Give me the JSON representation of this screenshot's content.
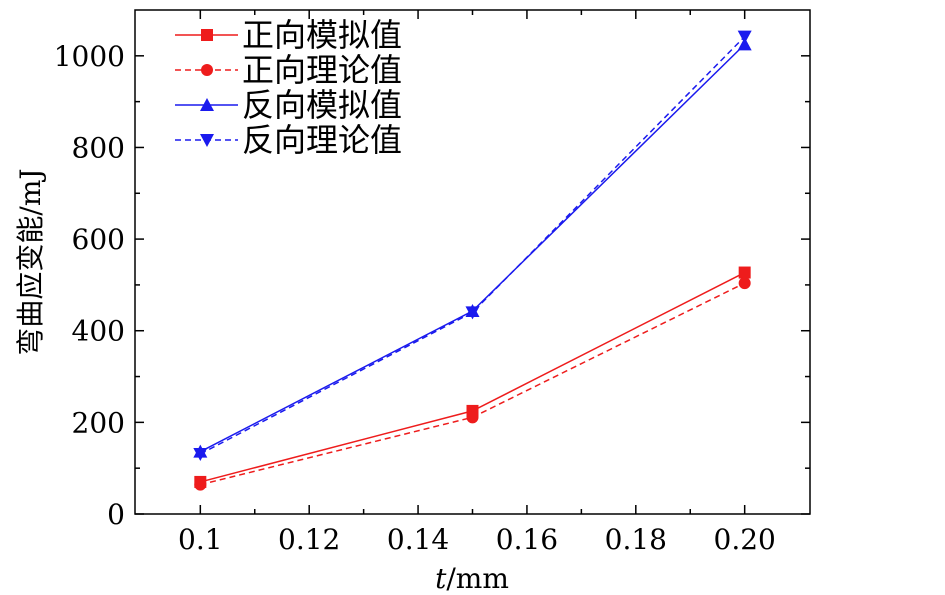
{
  "chart_data": {
    "type": "line",
    "xlabel_italic": "t",
    "xlabel_unit": "/mm",
    "ylabel": "弯曲应变能/mJ",
    "xlim": [
      0.088,
      0.212
    ],
    "ylim": [
      0,
      1100
    ],
    "x_ticks": [
      0.1,
      0.12,
      0.14,
      0.16,
      0.18,
      0.2
    ],
    "x_tick_labels": [
      "0.1",
      "0.12",
      "0.14",
      "0.16",
      "0.18",
      "0.20"
    ],
    "y_ticks": [
      0,
      200,
      400,
      600,
      800,
      1000
    ],
    "y_tick_labels": [
      "0",
      "200",
      "400",
      "600",
      "800",
      "1000"
    ],
    "legend_position": "top-left",
    "series": [
      {
        "name": "正向模拟值",
        "x": [
          0.1,
          0.15,
          0.2
        ],
        "y": [
          70,
          225,
          527
        ],
        "color": "#ee1c1c",
        "dashed": false,
        "marker": "square"
      },
      {
        "name": "正向理论值",
        "x": [
          0.1,
          0.15,
          0.2
        ],
        "y": [
          64,
          211,
          504
        ],
        "color": "#ee1c1c",
        "dashed": true,
        "marker": "circle"
      },
      {
        "name": "反向模拟值",
        "x": [
          0.1,
          0.15,
          0.2
        ],
        "y": [
          136,
          443,
          1025
        ],
        "color": "#1a1aee",
        "dashed": false,
        "marker": "triangle-up"
      },
      {
        "name": "反向理论值",
        "x": [
          0.1,
          0.15,
          0.2
        ],
        "y": [
          131,
          440,
          1042
        ],
        "color": "#1a1aee",
        "dashed": true,
        "marker": "triangle-down"
      }
    ]
  }
}
